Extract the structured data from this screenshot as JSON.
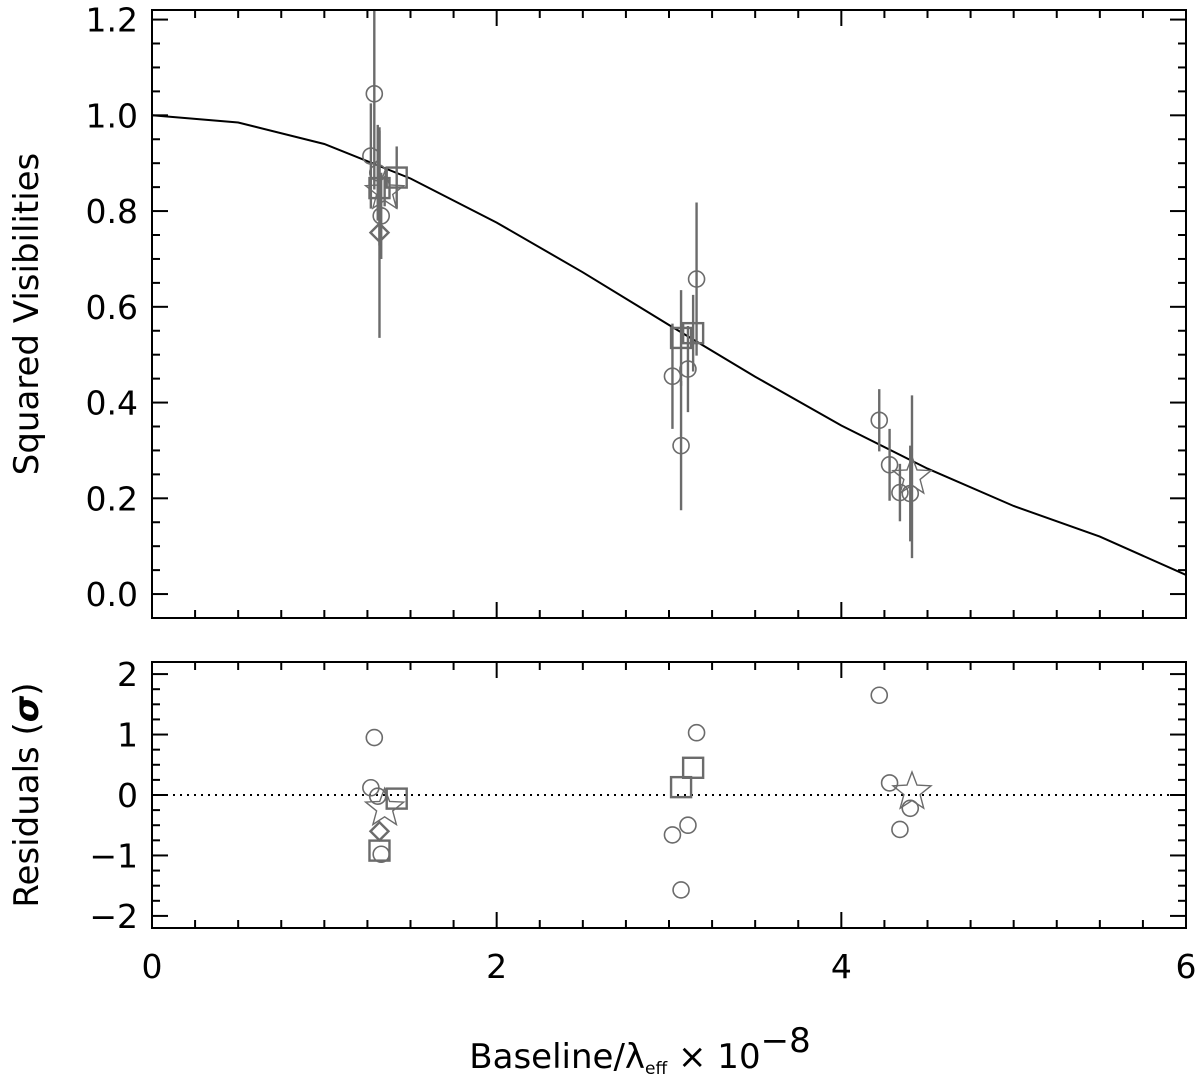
{
  "chart_data": [
    {
      "type": "scatter",
      "panel": "top",
      "xlabel": "Baseline/λeff × 10−8",
      "ylabel": "Squared Visibilities",
      "xlim": [
        0,
        6
      ],
      "ylim": [
        -0.05,
        1.22
      ],
      "yticks": [
        "0.0",
        "0.2",
        "0.4",
        "0.6",
        "0.8",
        "1.0",
        "1.2"
      ],
      "grid": false,
      "model_curve": {
        "description": "uniform-disk model",
        "x": [
          0,
          0.5,
          1.0,
          1.5,
          2.0,
          2.5,
          3.0,
          3.5,
          4.0,
          4.5,
          5.0,
          5.5,
          6.0
        ],
        "y": [
          1.0,
          0.985,
          0.94,
          0.868,
          0.776,
          0.672,
          0.562,
          0.454,
          0.352,
          0.262,
          0.184,
          0.12,
          0.04
        ]
      },
      "series": [
        {
          "marker": "circle",
          "points": [
            {
              "x": 1.29,
              "y": 1.045,
              "err": 0.2
            },
            {
              "x": 1.27,
              "y": 0.915,
              "err": 0.11
            },
            {
              "x": 1.31,
              "y": 0.88,
              "err": 0.1
            },
            {
              "x": 1.33,
              "y": 0.79,
              "err": 0.09
            },
            {
              "x": 3.02,
              "y": 0.455,
              "err": 0.11
            },
            {
              "x": 3.07,
              "y": 0.31,
              "err": 0.135
            },
            {
              "x": 3.11,
              "y": 0.47,
              "err": 0.09
            },
            {
              "x": 3.16,
              "y": 0.658,
              "err": 0.16
            },
            {
              "x": 4.22,
              "y": 0.363,
              "err": 0.065
            },
            {
              "x": 4.28,
              "y": 0.27,
              "err": 0.075
            },
            {
              "x": 4.34,
              "y": 0.212,
              "err": 0.06
            },
            {
              "x": 4.4,
              "y": 0.21,
              "err": 0.1
            }
          ]
        },
        {
          "marker": "square",
          "points": [
            {
              "x": 1.32,
              "y": 0.848,
              "err": 0.12
            },
            {
              "x": 1.42,
              "y": 0.87,
              "err": 0.065
            },
            {
              "x": 3.07,
              "y": 0.535,
              "err": 0.1
            },
            {
              "x": 3.14,
              "y": 0.545,
              "err": 0.08
            }
          ]
        },
        {
          "marker": "diamond",
          "points": [
            {
              "x": 1.32,
              "y": 0.755,
              "err": 0.22
            }
          ]
        },
        {
          "marker": "star",
          "points": [
            {
              "x": 1.35,
              "y": 0.84,
              "err": 0.03
            },
            {
              "x": 4.41,
              "y": 0.245,
              "err": 0.17
            }
          ]
        }
      ]
    },
    {
      "type": "scatter",
      "panel": "bottom",
      "xlabel": "Baseline/λeff × 10−8",
      "ylabel": "Residuals (σ)",
      "xlim": [
        0,
        6
      ],
      "ylim": [
        -2.2,
        2.2
      ],
      "xticks": [
        "0",
        "2",
        "4",
        "6"
      ],
      "yticks": [
        "−2",
        "−1",
        "0",
        "1",
        "2"
      ],
      "reference_line": {
        "y": 0,
        "style": "dotted"
      },
      "series": [
        {
          "marker": "circle",
          "points": [
            {
              "x": 1.29,
              "y": 0.95
            },
            {
              "x": 1.27,
              "y": 0.12
            },
            {
              "x": 1.31,
              "y": -0.02
            },
            {
              "x": 1.33,
              "y": -0.98
            },
            {
              "x": 3.02,
              "y": -0.66
            },
            {
              "x": 3.07,
              "y": -1.57
            },
            {
              "x": 3.11,
              "y": -0.5
            },
            {
              "x": 3.16,
              "y": 1.03
            },
            {
              "x": 4.22,
              "y": 1.65
            },
            {
              "x": 4.28,
              "y": 0.2
            },
            {
              "x": 4.34,
              "y": -0.57
            },
            {
              "x": 4.4,
              "y": -0.22
            }
          ]
        },
        {
          "marker": "square",
          "points": [
            {
              "x": 1.32,
              "y": -0.92
            },
            {
              "x": 1.42,
              "y": -0.06
            },
            {
              "x": 3.07,
              "y": 0.13
            },
            {
              "x": 3.14,
              "y": 0.45
            }
          ]
        },
        {
          "marker": "diamond",
          "points": [
            {
              "x": 1.32,
              "y": -0.6
            }
          ]
        },
        {
          "marker": "star",
          "points": [
            {
              "x": 1.35,
              "y": -0.22
            },
            {
              "x": 4.41,
              "y": 0.05
            }
          ]
        }
      ]
    }
  ],
  "labels": {
    "ylabel_top": "Squared Visibilities",
    "ylabel_bottom_text": "Residuals (",
    "ylabel_bottom_symbol": "σ",
    "ylabel_bottom_close": ")",
    "xlabel_main": "Baseline/",
    "xlabel_lambda": "λ",
    "xlabel_sub": "eff",
    "xlabel_times": " × 10",
    "xlabel_exp": "−8"
  },
  "colors": {
    "axis": "#000000",
    "model": "#000000",
    "markers": "#6b6b6b",
    "errorbars": "#6b6b6b"
  }
}
